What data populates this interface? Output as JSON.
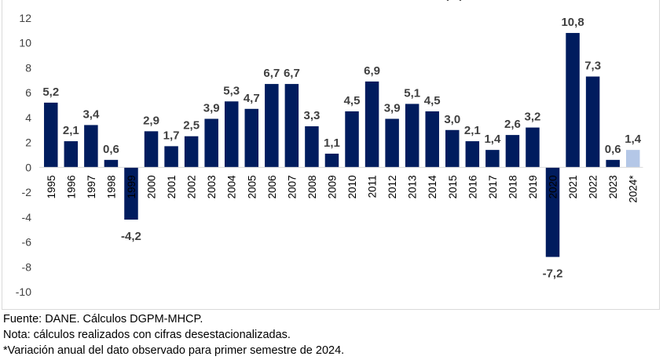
{
  "chart_data": {
    "type": "bar",
    "title": "(%)",
    "categories": [
      "1995",
      "1996",
      "1997",
      "1998",
      "1999",
      "2000",
      "2001",
      "2002",
      "2003",
      "2004",
      "2005",
      "2006",
      "2007",
      "2008",
      "2009",
      "2010",
      "2011",
      "2012",
      "2013",
      "2014",
      "2015",
      "2016",
      "2017",
      "2018",
      "2019",
      "2020",
      "2021",
      "2022",
      "2023",
      "2024*"
    ],
    "values": [
      5.2,
      2.1,
      3.4,
      0.6,
      -4.2,
      2.9,
      1.7,
      2.5,
      3.9,
      5.3,
      4.7,
      6.7,
      6.7,
      3.3,
      1.1,
      4.5,
      6.9,
      3.9,
      5.1,
      4.5,
      3.0,
      2.1,
      1.4,
      2.6,
      3.2,
      -7.2,
      10.8,
      7.3,
      0.6,
      1.4
    ],
    "data_labels": [
      "5,2",
      "2,1",
      "3,4",
      "0,6",
      "-4,2",
      "2,9",
      "1,7",
      "2,5",
      "3,9",
      "5,3",
      "4,7",
      "6,7",
      "6,7",
      "3,3",
      "1,1",
      "4,5",
      "6,9",
      "3,9",
      "5,1",
      "4,5",
      "3,0",
      "2,1",
      "1,4",
      "2,6",
      "3,2",
      "-7,2",
      "10,8",
      "7,3",
      "0,6",
      "1,4"
    ],
    "ylim": [
      -10,
      12
    ],
    "yticks": [
      12,
      10,
      8,
      6,
      4,
      2,
      0,
      -2,
      -4,
      -6,
      -8,
      -10
    ],
    "grid": false,
    "colors": {
      "bar": "#001c5e",
      "highlight": "#b4c7e7"
    },
    "highlight_index": 29
  },
  "notes": {
    "source": "Fuente: DANE. Cálculos DGPM-MHCP.",
    "note": "Nota: cálculos realizados con cifras desestacionalizadas.",
    "footnote": "*Variación anual del dato observado para primer semestre de 2024."
  }
}
